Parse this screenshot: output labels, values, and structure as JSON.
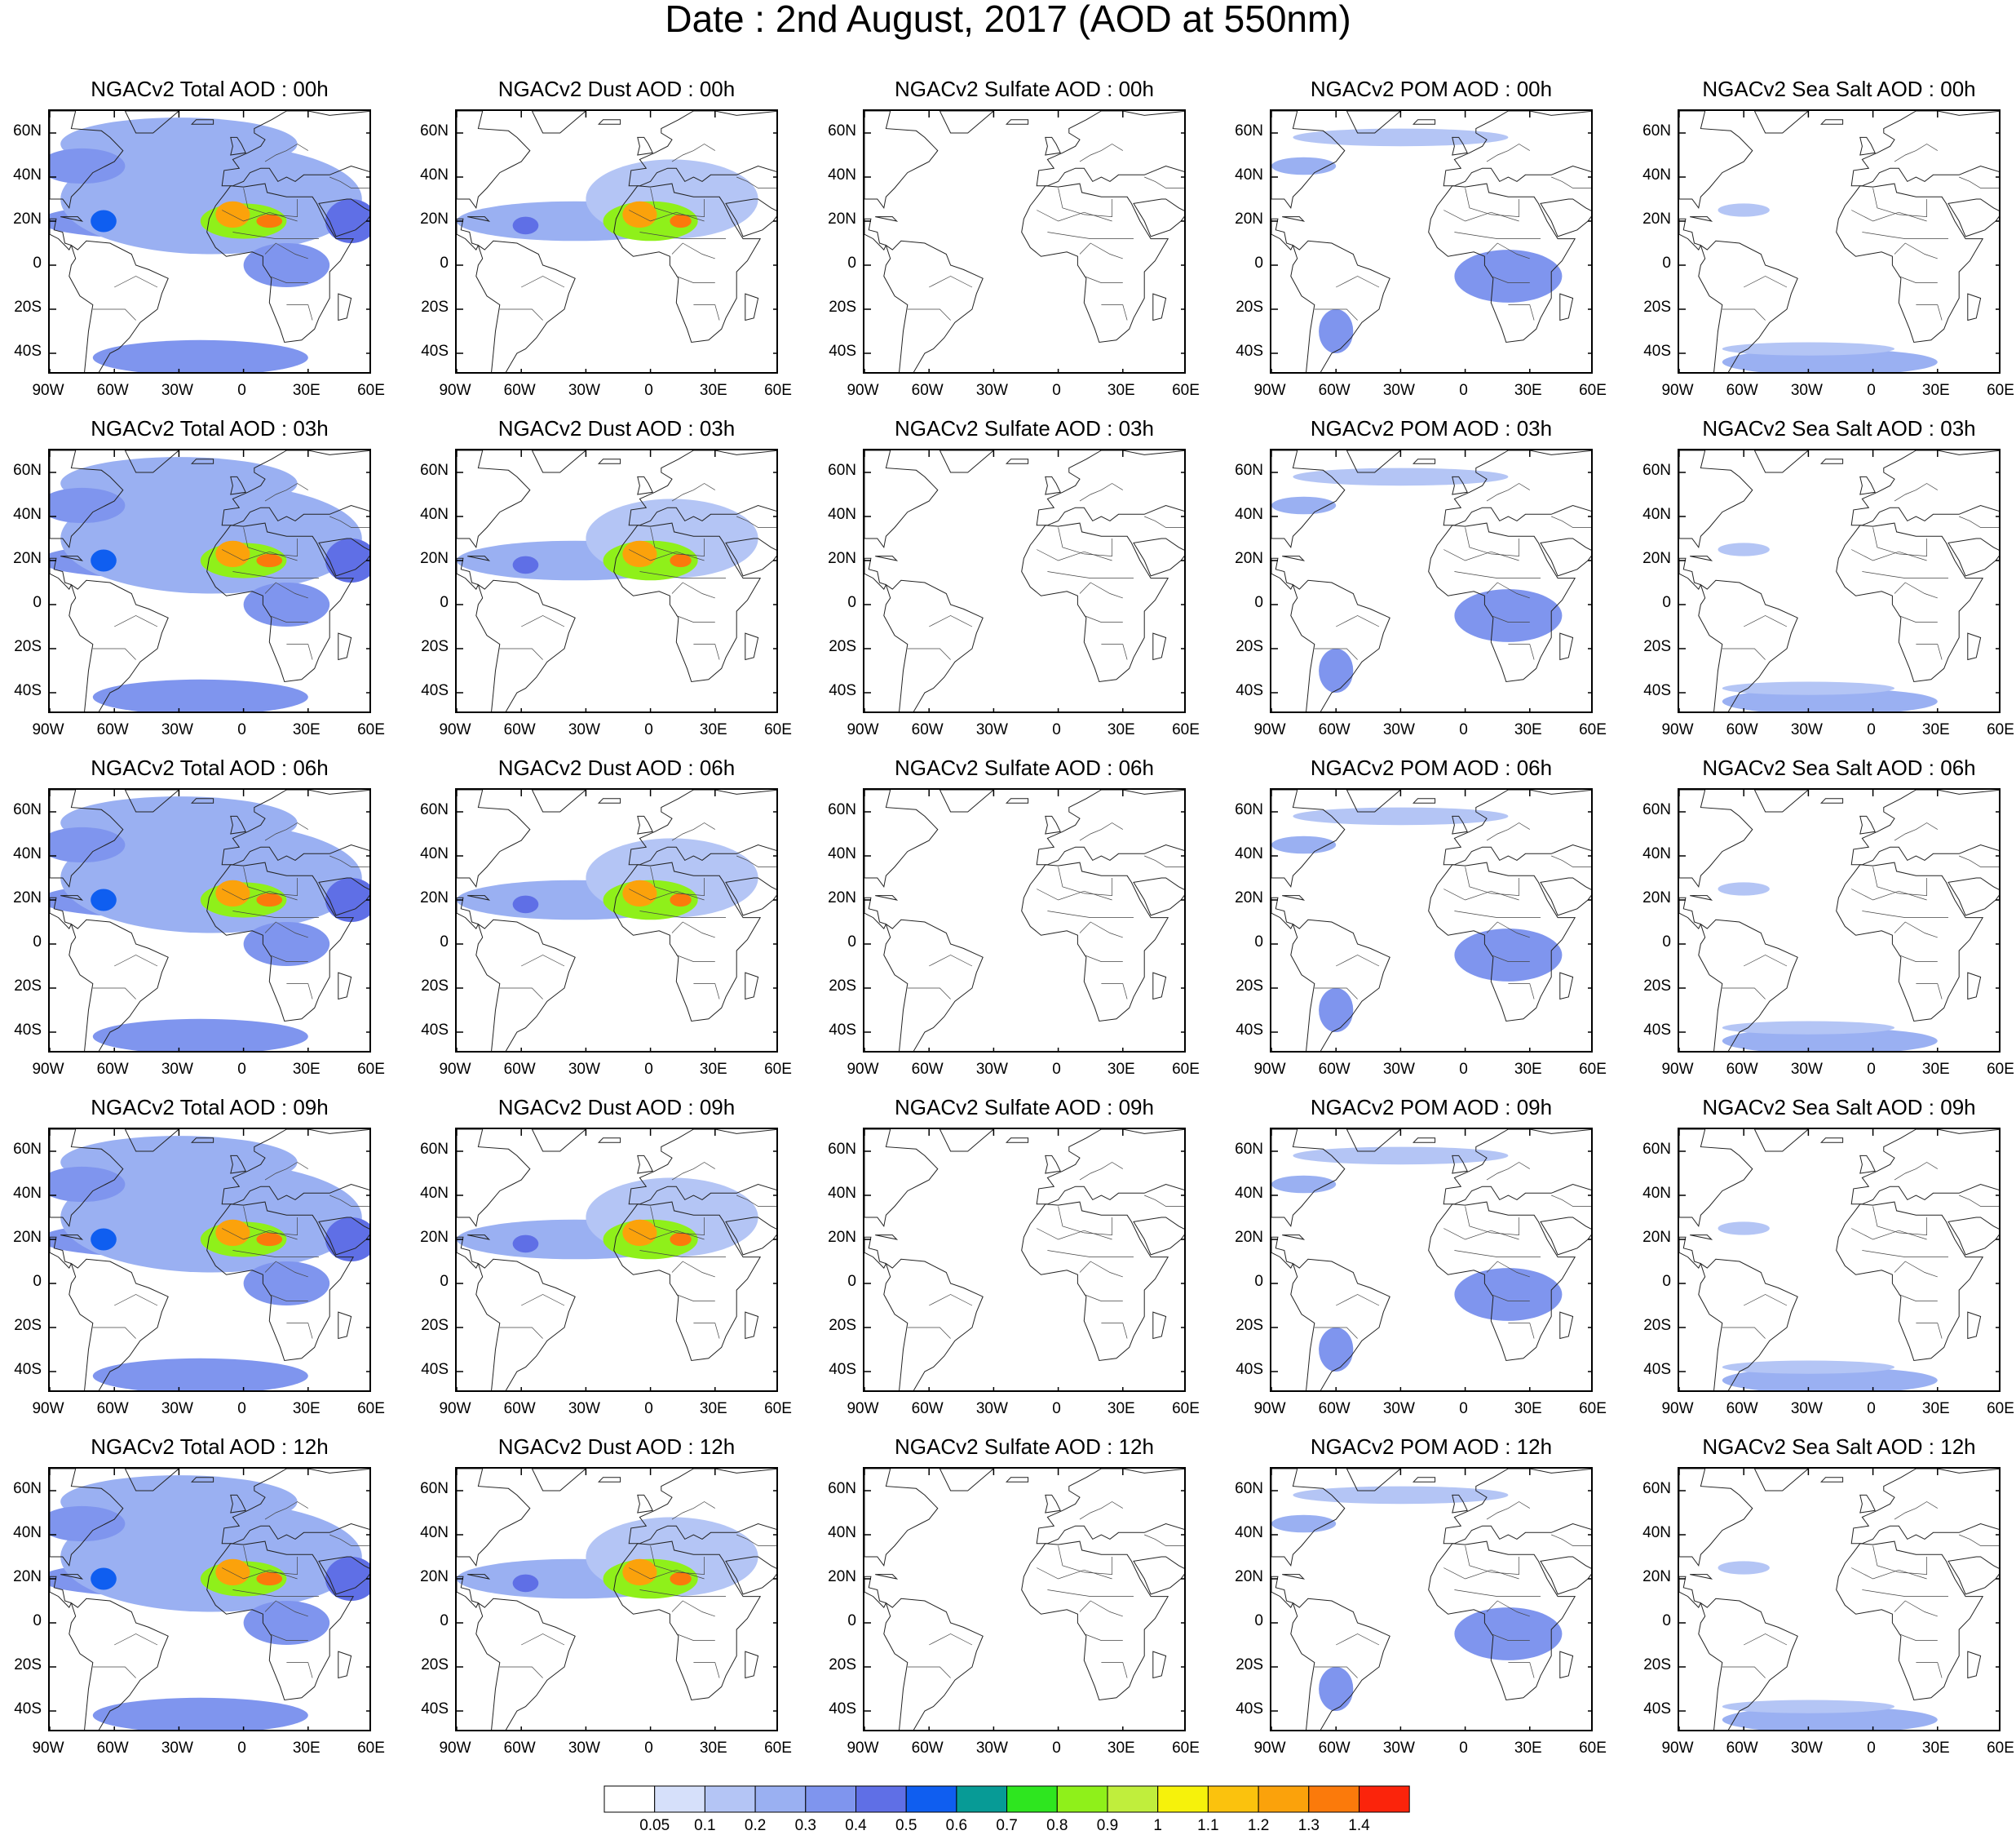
{
  "title": "Date : 2nd August, 2017 (AOD at 550nm)",
  "lat_labels": [
    "60N",
    "40N",
    "20N",
    "0",
    "20S",
    "40S"
  ],
  "lat_values": [
    60,
    40,
    20,
    0,
    -20,
    -40
  ],
  "lon_labels": [
    "90W",
    "60W",
    "30W",
    "0",
    "30E",
    "60E"
  ],
  "lon_values": [
    -90,
    -60,
    -30,
    0,
    30,
    60
  ],
  "extent": {
    "lon_min": -90,
    "lon_max": 60,
    "lat_min": -50,
    "lat_max": 70
  },
  "panel_titles": [
    [
      "NGACv2 Total AOD : 00h",
      "NGACv2 Dust AOD : 00h",
      "NGACv2 Sulfate AOD : 00h",
      "NGACv2 POM AOD : 00h",
      "NGACv2 Sea Salt AOD : 00h"
    ],
    [
      "NGACv2 Total AOD : 03h",
      "NGACv2 Dust AOD : 03h",
      "NGACv2 Sulfate AOD : 03h",
      "NGACv2 POM AOD : 03h",
      "NGACv2 Sea Salt AOD : 03h"
    ],
    [
      "NGACv2 Total AOD : 06h",
      "NGACv2 Dust AOD : 06h",
      "NGACv2 Sulfate AOD : 06h",
      "NGACv2 POM AOD : 06h",
      "NGACv2 Sea Salt AOD : 06h"
    ],
    [
      "NGACv2 Total AOD : 09h",
      "NGACv2 Dust AOD : 09h",
      "NGACv2 Sulfate AOD : 09h",
      "NGACv2 POM AOD : 09h",
      "NGACv2 Sea Salt  AOD : 09h"
    ],
    [
      "NGACv2 Total AOD  : 12h",
      "NGACv2 Dust AOD : 12h",
      "NGACv2 Sulfate AOD : 12h",
      "NGACv2 POM  AOD : 12h",
      "NGACv2 Sea Salt  AOD : 12h"
    ]
  ],
  "colorbar": {
    "labels": [
      "0.05",
      "0.1",
      "0.2",
      "0.3",
      "0.4",
      "0.5",
      "0.6",
      "0.7",
      "0.8",
      "0.9",
      "1",
      "1.1",
      "1.2",
      "1.3",
      "1.4"
    ],
    "colors": [
      "#ffffff",
      "#d6e0fa",
      "#b4c5f5",
      "#9ab0f2",
      "#7f95ee",
      "#5f6fe6",
      "#0f5ef0",
      "#079b96",
      "#2ee61f",
      "#8ff01a",
      "#c0ee3c",
      "#f6f20b",
      "#fbc20d",
      "#fba20b",
      "#fb7a0b",
      "#fb240b"
    ]
  },
  "fields": {
    "Total": [
      {
        "lon": -40,
        "lat": 20,
        "rx": 55,
        "ry": 8,
        "v": 0.35
      },
      {
        "lon": -15,
        "lat": 30,
        "rx": 70,
        "ry": 25,
        "v": 0.2
      },
      {
        "lon": -30,
        "lat": 55,
        "rx": 55,
        "ry": 12,
        "v": 0.25
      },
      {
        "lon": -75,
        "lat": 45,
        "rx": 20,
        "ry": 8,
        "v": 0.3
      },
      {
        "lon": -20,
        "lat": -42,
        "rx": 50,
        "ry": 8,
        "v": 0.3
      },
      {
        "lon": 20,
        "lat": 0,
        "rx": 20,
        "ry": 10,
        "v": 0.35
      },
      {
        "lon": 50,
        "lat": 20,
        "rx": 12,
        "ry": 10,
        "v": 0.4
      },
      {
        "lon": -65,
        "lat": 20,
        "rx": 6,
        "ry": 5,
        "v": 0.55
      },
      {
        "lon": 0,
        "lat": 20,
        "rx": 20,
        "ry": 8,
        "v": 0.8
      },
      {
        "lon": -5,
        "lat": 23,
        "rx": 8,
        "ry": 6,
        "v": 1.2
      },
      {
        "lon": 12,
        "lat": 20,
        "rx": 6,
        "ry": 3,
        "v": 1.3
      }
    ],
    "Dust": [
      {
        "lon": -35,
        "lat": 20,
        "rx": 55,
        "ry": 9,
        "v": 0.25
      },
      {
        "lon": 10,
        "lat": 30,
        "rx": 40,
        "ry": 18,
        "v": 0.15
      },
      {
        "lon": 0,
        "lat": 20,
        "rx": 22,
        "ry": 9,
        "v": 0.8
      },
      {
        "lon": -5,
        "lat": 23,
        "rx": 8,
        "ry": 6,
        "v": 1.2
      },
      {
        "lon": 14,
        "lat": 20,
        "rx": 5,
        "ry": 3,
        "v": 1.3
      },
      {
        "lon": -58,
        "lat": 18,
        "rx": 6,
        "ry": 4,
        "v": 0.45
      }
    ],
    "Sulfate": [],
    "POM": [
      {
        "lon": 20,
        "lat": -5,
        "rx": 25,
        "ry": 12,
        "v": 0.35
      },
      {
        "lon": -60,
        "lat": -30,
        "rx": 8,
        "ry": 10,
        "v": 0.3
      },
      {
        "lon": -30,
        "lat": 58,
        "rx": 50,
        "ry": 4,
        "v": 0.15
      },
      {
        "lon": -75,
        "lat": 45,
        "rx": 15,
        "ry": 4,
        "v": 0.2
      }
    ],
    "Sea Salt": [
      {
        "lon": -20,
        "lat": -44,
        "rx": 50,
        "ry": 6,
        "v": 0.25
      },
      {
        "lon": -30,
        "lat": -38,
        "rx": 40,
        "ry": 3,
        "v": 0.12
      },
      {
        "lon": -60,
        "lat": 25,
        "rx": 12,
        "ry": 3,
        "v": 0.12
      }
    ]
  }
}
